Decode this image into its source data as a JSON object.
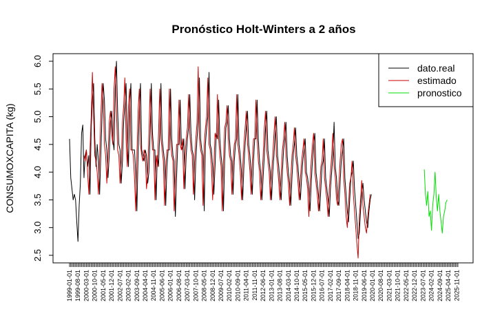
{
  "chart_data": {
    "type": "line",
    "title": "Pronóstico Holt-Winters a 2 años",
    "xlabel": "",
    "ylabel": "CONSUMOXCAPITA (kg)",
    "ylim": [
      2.4,
      6.1
    ],
    "yticks": [
      2.5,
      3.0,
      3.5,
      4.0,
      4.5,
      5.0,
      5.5,
      6.0
    ],
    "ytick_labels": [
      "2.5",
      "3.0",
      "3.5",
      "4.0",
      "4.5",
      "5.0",
      "5.5",
      "6.0"
    ],
    "x_start": "1999-01-01",
    "x_end": "2025-12-01",
    "frequency": "monthly",
    "xtick_labels": [
      "1999-01-01",
      "1999-08-01",
      "2000-03-01",
      "2000-10-01",
      "2001-05-01",
      "2001-12-01",
      "2002-07-01",
      "2003-02-01",
      "2003-09-01",
      "2004-04-01",
      "2004-11-01",
      "2005-06-01",
      "2006-01-01",
      "2006-08-01",
      "2007-03-01",
      "2007-10-01",
      "2008-05-01",
      "2008-12-01",
      "2009-07-01",
      "2010-02-01",
      "2010-09-01",
      "2011-04-01",
      "2011-11-01",
      "2012-06-01",
      "2013-01-01",
      "2013-08-01",
      "2014-03-01",
      "2014-10-01",
      "2015-05-01",
      "2015-12-01",
      "2016-07-01",
      "2017-02-01",
      "2017-09-01",
      "2018-04-01",
      "2018-11-01",
      "2019-06-01",
      "2020-01-01",
      "2020-08-01",
      "2021-03-01",
      "2021-10-01",
      "2022-05-01",
      "2022-12-01",
      "2023-07-01",
      "2024-02-01",
      "2024-09-01",
      "2025-04-01",
      "2025-11-01"
    ],
    "grid": false,
    "legend": "top-right",
    "series": [
      {
        "name": "dato.real",
        "color": "#000000",
        "start": "1999-01-01",
        "values": [
          4.6,
          3.9,
          3.7,
          3.5,
          3.6,
          3.5,
          3.1,
          2.75,
          3.4,
          3.8,
          4.7,
          4.85,
          3.9,
          4.3,
          4.4,
          4.1,
          4.3,
          3.6,
          4.8,
          5.3,
          5.6,
          4.6,
          4.1,
          4.5,
          4.2,
          3.6,
          4.3,
          5.0,
          5.6,
          5.3,
          4.6,
          4.4,
          3.9,
          4.3,
          4.9,
          5.1,
          4.6,
          4.4,
          5.5,
          6.0,
          5.1,
          4.5,
          4.4,
          3.8,
          4.2,
          4.9,
          5.2,
          5.6,
          4.6,
          4.1,
          5.2,
          5.6,
          4.4,
          4.4,
          4.4,
          4.0,
          3.3,
          4.3,
          5.1,
          5.6,
          4.4,
          4.3,
          4.2,
          4.4,
          4.3,
          3.8,
          4.0,
          4.7,
          5.6,
          4.7,
          4.4,
          4.4,
          3.5,
          4.3,
          4.1,
          4.7,
          5.6,
          4.6,
          4.4,
          4.2,
          3.4,
          4.1,
          4.4,
          4.4,
          5.5,
          4.6,
          4.3,
          4.2,
          3.2,
          3.9,
          4.5,
          4.5,
          5.3,
          4.5,
          4.4,
          4.6,
          3.7,
          4.3,
          4.6,
          4.8,
          5.4,
          4.7,
          4.4,
          4.3,
          3.5,
          4.2,
          4.6,
          4.9,
          5.7,
          4.6,
          4.4,
          4.3,
          3.3,
          4.5,
          4.8,
          5.0,
          5.8,
          4.5,
          4.4,
          4.1,
          3.6,
          4.1,
          4.7,
          4.6,
          5.3,
          4.6,
          4.3,
          4.1,
          3.3,
          4.2,
          4.8,
          4.9,
          5.2,
          4.6,
          4.3,
          4.2,
          3.6,
          4.2,
          4.5,
          4.6,
          5.4,
          4.5,
          4.3,
          4.0,
          3.5,
          4.1,
          4.5,
          4.8,
          5.1,
          4.5,
          4.3,
          4.0,
          3.6,
          4.2,
          4.6,
          4.6,
          5.3,
          4.6,
          4.2,
          4.0,
          3.5,
          3.9,
          4.3,
          4.8,
          5.1,
          4.4,
          4.2,
          4.0,
          3.5,
          4.0,
          4.3,
          4.7,
          5.0,
          4.3,
          4.1,
          3.8,
          3.5,
          4.0,
          4.4,
          4.6,
          4.9,
          4.3,
          4.0,
          3.8,
          3.4,
          3.9,
          4.3,
          4.5,
          4.8,
          4.3,
          4.1,
          3.8,
          3.5,
          3.9,
          4.2,
          4.4,
          4.6,
          4.0,
          3.9,
          3.7,
          3.3,
          3.8,
          4.2,
          4.5,
          4.7,
          4.0,
          3.8,
          3.6,
          3.3,
          3.7,
          4.1,
          4.2,
          4.6,
          3.9,
          3.7,
          3.5,
          3.2,
          3.7,
          4.0,
          4.3,
          4.9,
          4.1,
          3.9,
          3.5,
          3.4,
          3.8,
          4.2,
          4.4,
          4.6,
          3.9,
          3.6,
          3.3,
          3.1,
          3.5,
          3.9,
          4.0,
          4.2,
          3.7,
          3.4,
          3.1,
          2.8,
          2.9,
          3.3,
          3.6,
          3.8,
          3.5,
          3.3,
          3.1,
          3.0,
          3.3,
          3.5,
          3.6
        ],
        "color_name": "black"
      },
      {
        "name": "estimado",
        "color": "#cc0000",
        "start": "2000-01-01",
        "values": [
          4.3,
          4.2,
          4.4,
          4.0,
          3.6,
          4.4,
          5.0,
          5.8,
          5.0,
          4.3,
          4.2,
          4.0,
          3.6,
          4.3,
          5.0,
          5.6,
          5.3,
          4.5,
          4.3,
          3.8,
          4.3,
          4.9,
          5.1,
          4.7,
          4.5,
          5.5,
          5.9,
          5.1,
          4.4,
          4.3,
          3.8,
          4.2,
          4.9,
          5.2,
          5.7,
          4.6,
          4.1,
          5.2,
          5.5,
          4.4,
          4.4,
          4.3,
          3.9,
          3.3,
          4.3,
          5.1,
          5.5,
          4.5,
          4.3,
          4.2,
          4.4,
          4.3,
          3.7,
          4.0,
          4.7,
          5.5,
          4.8,
          4.4,
          4.4,
          3.5,
          4.3,
          4.1,
          4.7,
          5.5,
          4.6,
          4.4,
          4.2,
          3.4,
          4.1,
          4.4,
          4.4,
          5.5,
          4.6,
          4.3,
          4.2,
          3.3,
          3.9,
          4.5,
          4.5,
          5.3,
          4.5,
          4.4,
          4.6,
          3.7,
          4.3,
          4.6,
          4.8,
          5.4,
          4.7,
          4.4,
          4.3,
          3.6,
          4.2,
          4.6,
          4.9,
          5.9,
          4.6,
          4.4,
          4.3,
          3.4,
          4.5,
          4.8,
          5.0,
          5.7,
          4.5,
          4.4,
          4.1,
          3.5,
          4.1,
          4.7,
          4.6,
          5.4,
          4.6,
          4.3,
          4.1,
          3.3,
          4.2,
          4.8,
          4.9,
          5.2,
          4.6,
          4.3,
          4.2,
          3.6,
          4.2,
          4.5,
          4.6,
          5.4,
          4.5,
          4.3,
          4.0,
          3.5,
          4.1,
          4.5,
          4.8,
          5.1,
          4.5,
          4.3,
          4.0,
          3.6,
          4.2,
          4.6,
          4.6,
          5.3,
          4.6,
          4.2,
          4.0,
          3.5,
          3.9,
          4.3,
          4.8,
          5.1,
          4.4,
          4.2,
          4.0,
          3.5,
          4.0,
          4.3,
          4.7,
          5.0,
          4.3,
          4.1,
          3.8,
          3.5,
          4.0,
          4.4,
          4.6,
          4.9,
          4.3,
          4.0,
          3.8,
          3.4,
          3.9,
          4.3,
          4.5,
          4.8,
          4.3,
          4.1,
          3.8,
          3.5,
          3.9,
          4.2,
          4.4,
          4.6,
          4.0,
          3.9,
          3.7,
          3.2,
          3.8,
          4.2,
          4.5,
          4.7,
          4.0,
          3.8,
          3.6,
          3.3,
          3.7,
          4.1,
          4.2,
          4.6,
          3.9,
          3.7,
          3.5,
          3.2,
          3.7,
          4.0,
          4.3,
          4.7,
          4.1,
          3.9,
          3.5,
          3.4,
          3.8,
          4.2,
          4.5,
          4.6,
          3.9,
          3.6,
          3.2,
          3.0,
          3.4,
          3.8,
          3.9,
          4.2,
          3.6,
          3.3,
          3.0,
          2.7,
          2.45,
          3.2,
          3.5,
          3.85,
          3.4,
          3.2,
          3.0,
          2.9,
          3.2,
          3.4,
          3.6
        ]
      },
      {
        "name": "pronostico",
        "color": "#00dd00",
        "start": "2023-08-01",
        "values": [
          4.05,
          3.6,
          3.4,
          3.65,
          3.2,
          3.3,
          2.95,
          3.4,
          3.6,
          4.0,
          3.55,
          3.3,
          3.6,
          3.3,
          3.1,
          2.9,
          3.2,
          3.3,
          3.45,
          3.5
        ]
      }
    ]
  }
}
